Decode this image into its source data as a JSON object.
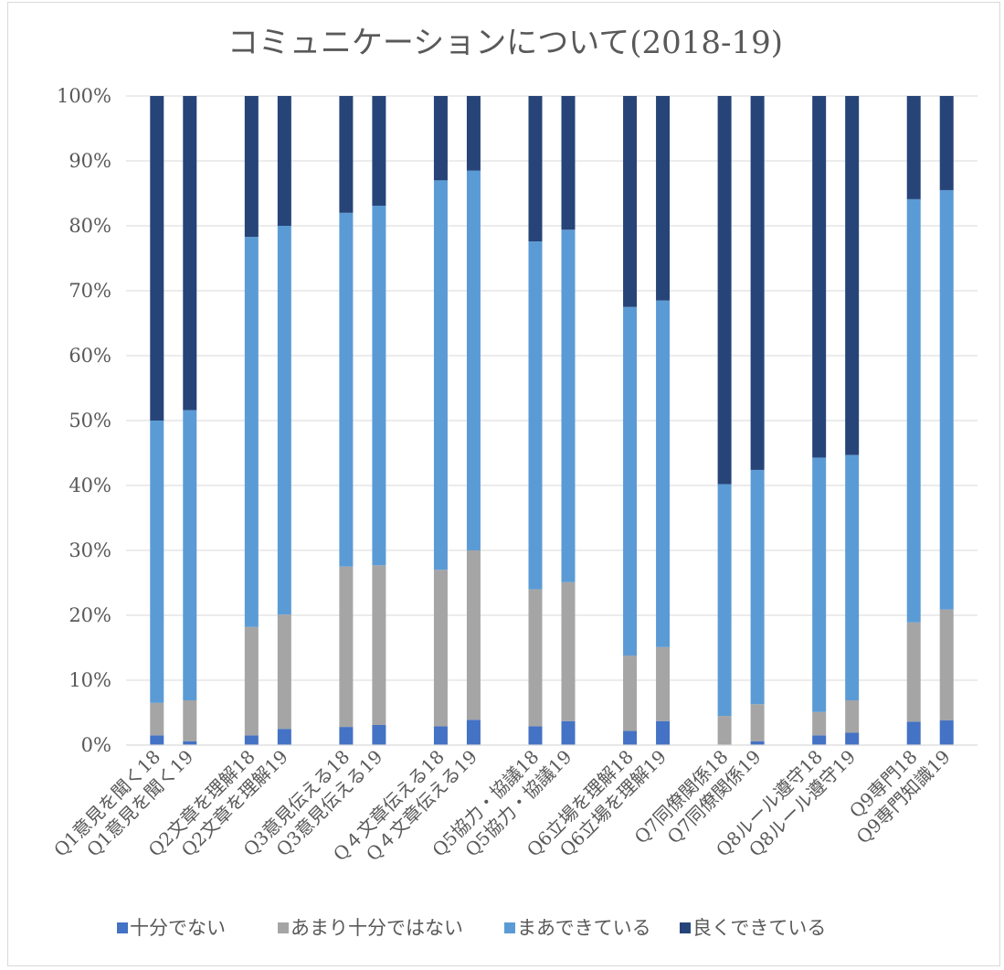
{
  "chart_data": {
    "type": "bar",
    "stacked": "percent",
    "title": "コミュニケーションについて(2018-19)",
    "ylim": [
      0,
      100
    ],
    "yticks": [
      "0%",
      "10%",
      "20%",
      "30%",
      "40%",
      "50%",
      "60%",
      "70%",
      "80%",
      "90%",
      "100%"
    ],
    "grid": true,
    "legend_position": "bottom",
    "groups": [
      [
        "Q1意見を聞く18",
        "Q1意見を聞く19"
      ],
      [
        "Q2文章を理解18",
        "Q2文章を理解19"
      ],
      [
        "Q3意見伝える18",
        "Q3意見伝える19"
      ],
      [
        "Q４文章伝える18",
        "Q４文章伝える19"
      ],
      [
        "Q5協力・協議18",
        "Q5協力・協議19"
      ],
      [
        "Q6立場を理解18",
        "Q6立場を理解19"
      ],
      [
        "Q7同僚関係18",
        "Q7同僚関係19"
      ],
      [
        "Q8ルール遵守18",
        "Q8ルール遵守19"
      ],
      [
        "Q9専門18",
        "Q9専門知識19"
      ]
    ],
    "series": [
      {
        "name": "十分でない",
        "color": "#4472c4",
        "values": [
          1.5,
          0.6,
          1.5,
          2.5,
          2.8,
          3.1,
          2.9,
          3.9,
          2.9,
          3.7,
          2.2,
          3.7,
          0.0,
          0.6,
          1.5,
          1.9,
          3.6,
          3.8
        ]
      },
      {
        "name": "あまり十分ではない",
        "color": "#a5a5a5",
        "values": [
          5.0,
          6.3,
          16.7,
          17.6,
          24.7,
          24.6,
          24.1,
          26.1,
          21.1,
          21.4,
          11.6,
          11.4,
          4.5,
          5.7,
          3.6,
          5.0,
          15.3,
          17.1
        ]
      },
      {
        "name": "まあできている",
        "color": "#5b9bd5",
        "values": [
          43.5,
          44.7,
          60.1,
          59.9,
          54.5,
          55.4,
          60.0,
          58.5,
          53.6,
          54.3,
          53.7,
          53.4,
          35.7,
          36.1,
          39.2,
          37.8,
          65.2,
          64.6
        ]
      },
      {
        "name": "良くできている",
        "color": "#264478",
        "values": [
          50.0,
          48.4,
          21.7,
          20.0,
          18.0,
          16.9,
          13.0,
          11.5,
          22.4,
          20.6,
          32.5,
          31.5,
          59.8,
          57.6,
          55.7,
          55.3,
          15.9,
          14.5
        ]
      }
    ]
  }
}
